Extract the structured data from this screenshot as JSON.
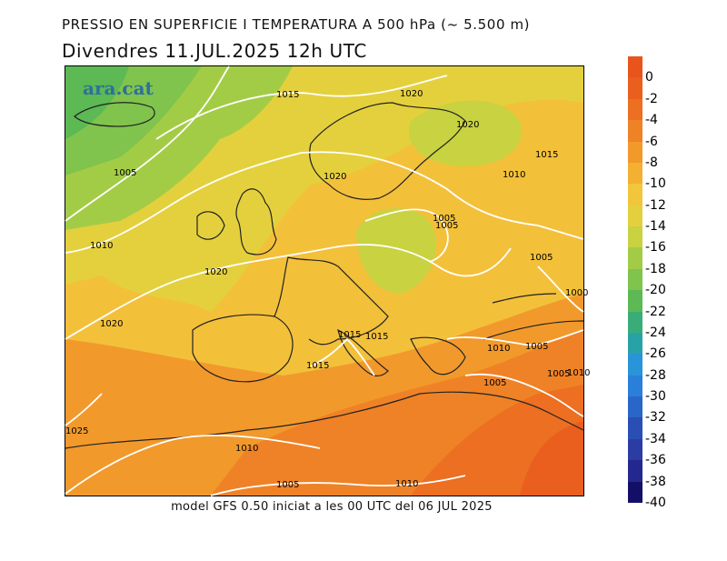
{
  "title": "PRESSIO EN SUPERFICIE I TEMPERATURA A 500 hPa (~ 5.500 m)",
  "subtitle": "Divendres  11.JUL.2025 12h UTC",
  "logo_text": "ara.cat",
  "footer": "model GFS 0.50 iniciat a les 00 UTC del 06 JUL 2025",
  "legend": {
    "labels": [
      "0",
      "-2",
      "-4",
      "-6",
      "-8",
      "-10",
      "-12",
      "-14",
      "-16",
      "-18",
      "-20",
      "-22",
      "-24",
      "-26",
      "-28",
      "-30",
      "-32",
      "-34",
      "-36",
      "-38",
      "-40"
    ],
    "colors": [
      "#e8541c",
      "#ea5f1e",
      "#ec6f22",
      "#ef8226",
      "#f2992c",
      "#f3b033",
      "#f2c63a",
      "#e4d03d",
      "#c9d240",
      "#a3cc46",
      "#80c34d",
      "#5cb954",
      "#3aac78",
      "#27a3a8",
      "#2a94d9",
      "#2a7fd9",
      "#2a66c8",
      "#2a4fb4",
      "#2b3ca2",
      "#23278e",
      "#140f66"
    ]
  },
  "isobar_labels": [
    "1015",
    "1020",
    "1020",
    "1005",
    "1010",
    "1020",
    "1015",
    "1010",
    "1005",
    "1020",
    "1005",
    "1020",
    "1015",
    "1015",
    "1015",
    "1010",
    "1005",
    "1005",
    "1010",
    "1005",
    "1010",
    "1005",
    "1010",
    "1025",
    "1000",
    "1005"
  ]
}
